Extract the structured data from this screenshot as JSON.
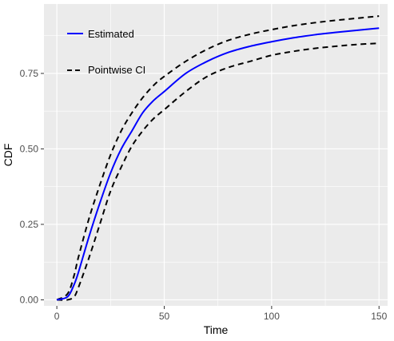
{
  "chart_data": {
    "type": "line",
    "xlabel": "Time",
    "ylabel": "CDF",
    "xlim": [
      -6,
      154
    ],
    "ylim": [
      -0.02,
      0.98
    ],
    "x_ticks": [
      0,
      50,
      100,
      150
    ],
    "x_tick_labels": [
      "0",
      "50",
      "100",
      "150"
    ],
    "y_ticks": [
      0.0,
      0.25,
      0.5,
      0.75
    ],
    "y_tick_labels": [
      "0.00",
      "0.25",
      "0.50",
      "0.75"
    ],
    "grid": true,
    "legend_position": "top-left inside",
    "legend": [
      {
        "label": "Estimated",
        "style": "solid",
        "color": "#0000ff"
      },
      {
        "label": "Pointwise CI",
        "style": "dashed",
        "color": "#000000"
      }
    ],
    "series": [
      {
        "name": "Estimated",
        "color": "#0000ff",
        "style": "solid",
        "x": [
          0,
          5,
          8,
          10,
          15,
          20,
          25,
          30,
          35,
          40,
          45,
          50,
          60,
          70,
          80,
          90,
          100,
          110,
          120,
          130,
          140,
          150
        ],
        "y": [
          0.0,
          0.01,
          0.05,
          0.09,
          0.21,
          0.32,
          0.42,
          0.5,
          0.56,
          0.62,
          0.66,
          0.69,
          0.75,
          0.79,
          0.82,
          0.84,
          0.855,
          0.868,
          0.878,
          0.886,
          0.893,
          0.9
        ]
      },
      {
        "name": "Pointwise CI",
        "color": "#000000",
        "style": "dashed",
        "x": [
          0,
          5,
          8,
          10,
          15,
          20,
          25,
          30,
          35,
          40,
          45,
          50,
          60,
          70,
          80,
          90,
          100,
          110,
          120,
          130,
          140,
          150
        ],
        "y": [
          0.0,
          0.02,
          0.08,
          0.14,
          0.27,
          0.38,
          0.48,
          0.56,
          0.62,
          0.67,
          0.71,
          0.74,
          0.79,
          0.83,
          0.86,
          0.88,
          0.895,
          0.908,
          0.918,
          0.926,
          0.933,
          0.94
        ]
      },
      {
        "name": "Pointwise CI",
        "color": "#000000",
        "style": "dashed",
        "x": [
          0,
          5,
          8,
          10,
          15,
          20,
          25,
          30,
          35,
          40,
          45,
          50,
          60,
          70,
          80,
          90,
          100,
          110,
          120,
          130,
          140,
          150
        ],
        "y": [
          0.0,
          0.0,
          0.01,
          0.04,
          0.14,
          0.25,
          0.36,
          0.44,
          0.51,
          0.56,
          0.6,
          0.63,
          0.69,
          0.74,
          0.77,
          0.79,
          0.81,
          0.823,
          0.833,
          0.84,
          0.846,
          0.85
        ]
      }
    ]
  }
}
